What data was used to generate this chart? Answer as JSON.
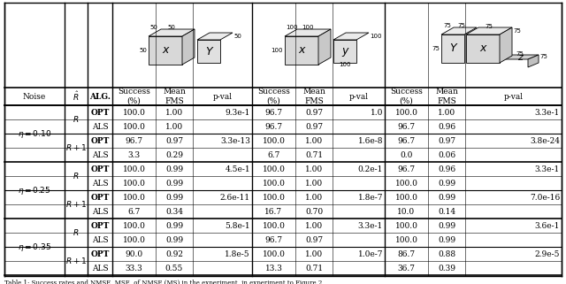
{
  "rows": [
    {
      "noise": "η = 0.10",
      "R_label": "R",
      "alg": "OPT",
      "d1_s": "100.0",
      "d1_m": "1.00",
      "d1_p": "9.3e-1",
      "d2_s": "96.7",
      "d2_m": "0.97",
      "d2_p": "1.0",
      "d3_s": "100.0",
      "d3_m": "1.00",
      "d3_p": "3.3e-1"
    },
    {
      "noise": "",
      "R_label": "",
      "alg": "ALS",
      "d1_s": "100.0",
      "d1_m": "1.00",
      "d1_p": "",
      "d2_s": "96.7",
      "d2_m": "0.97",
      "d2_p": "",
      "d3_s": "96.7",
      "d3_m": "0.96",
      "d3_p": ""
    },
    {
      "noise": "",
      "R_label": "R+1",
      "alg": "OPT",
      "d1_s": "96.7",
      "d1_m": "0.97",
      "d1_p": "3.3e-13",
      "d2_s": "100.0",
      "d2_m": "1.00",
      "d2_p": "1.6e-8",
      "d3_s": "96.7",
      "d3_m": "0.97",
      "d3_p": "3.8e-24"
    },
    {
      "noise": "",
      "R_label": "",
      "alg": "ALS",
      "d1_s": "3.3",
      "d1_m": "0.29",
      "d1_p": "",
      "d2_s": "6.7",
      "d2_m": "0.71",
      "d2_p": "",
      "d3_s": "0.0",
      "d3_m": "0.06",
      "d3_p": ""
    },
    {
      "noise": "η = 0.25",
      "R_label": "R",
      "alg": "OPT",
      "d1_s": "100.0",
      "d1_m": "0.99",
      "d1_p": "4.5e-1",
      "d2_s": "100.0",
      "d2_m": "1.00",
      "d2_p": "0.2e-1",
      "d3_s": "96.7",
      "d3_m": "0.96",
      "d3_p": "3.3e-1"
    },
    {
      "noise": "",
      "R_label": "",
      "alg": "ALS",
      "d1_s": "100.0",
      "d1_m": "0.99",
      "d1_p": "",
      "d2_s": "100.0",
      "d2_m": "1.00",
      "d2_p": "",
      "d3_s": "100.0",
      "d3_m": "0.99",
      "d3_p": ""
    },
    {
      "noise": "",
      "R_label": "R+1",
      "alg": "OPT",
      "d1_s": "100.0",
      "d1_m": "0.99",
      "d1_p": "2.6e-11",
      "d2_s": "100.0",
      "d2_m": "1.00",
      "d2_p": "1.8e-7",
      "d3_s": "100.0",
      "d3_m": "0.99",
      "d3_p": "7.0e-16"
    },
    {
      "noise": "",
      "R_label": "",
      "alg": "ALS",
      "d1_s": "6.7",
      "d1_m": "0.34",
      "d1_p": "",
      "d2_s": "16.7",
      "d2_m": "0.70",
      "d2_p": "",
      "d3_s": "10.0",
      "d3_m": "0.14",
      "d3_p": ""
    },
    {
      "noise": "η = 0.35",
      "R_label": "R",
      "alg": "OPT",
      "d1_s": "100.0",
      "d1_m": "0.99",
      "d1_p": "5.8e-1",
      "d2_s": "100.0",
      "d2_m": "1.00",
      "d2_p": "3.3e-1",
      "d3_s": "100.0",
      "d3_m": "0.99",
      "d3_p": "3.6e-1"
    },
    {
      "noise": "",
      "R_label": "",
      "alg": "ALS",
      "d1_s": "100.0",
      "d1_m": "0.99",
      "d1_p": "",
      "d2_s": "96.7",
      "d2_m": "0.97",
      "d2_p": "",
      "d3_s": "100.0",
      "d3_m": "0.99",
      "d3_p": ""
    },
    {
      "noise": "",
      "R_label": "R+1",
      "alg": "OPT",
      "d1_s": "90.0",
      "d1_m": "0.92",
      "d1_p": "1.8e-5",
      "d2_s": "100.0",
      "d2_m": "1.00",
      "d2_p": "1.0e-7",
      "d3_s": "86.7",
      "d3_m": "0.88",
      "d3_p": "2.9e-5"
    },
    {
      "noise": "",
      "R_label": "",
      "alg": "ALS",
      "d1_s": "33.3",
      "d1_m": "0.55",
      "d1_p": "",
      "d2_s": "13.3",
      "d2_m": "0.71",
      "d2_p": "",
      "d3_s": "36.7",
      "d3_m": "0.39",
      "d3_p": ""
    }
  ],
  "bg_color": "#ffffff",
  "table_font_size": 6.5,
  "header_font_size": 6.5,
  "caption_font_size": 5.0,
  "caption": "Table 1: ..."
}
